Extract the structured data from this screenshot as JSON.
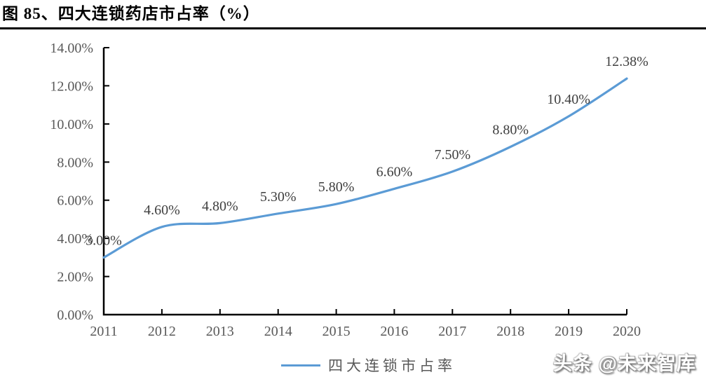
{
  "figure": {
    "title": "图 85、四大连锁药店市占率（%）"
  },
  "watermark": "头条 @未来智库",
  "chart_data": {
    "type": "line",
    "title": "四大连锁药店市占率（%）",
    "categories": [
      "2011",
      "2012",
      "2013",
      "2014",
      "2015",
      "2016",
      "2017",
      "2018",
      "2019",
      "2020"
    ],
    "series": [
      {
        "name": "四大连锁市占率",
        "values": [
          3.0,
          4.6,
          4.8,
          5.3,
          5.8,
          6.6,
          7.5,
          8.8,
          10.4,
          12.38
        ],
        "data_labels": [
          "3.00%",
          "4.60%",
          "4.80%",
          "5.30%",
          "5.80%",
          "6.60%",
          "7.50%",
          "8.80%",
          "10.40%",
          "12.38%"
        ]
      }
    ],
    "y_axis": {
      "min": 0,
      "max": 14,
      "tick_labels": [
        "0.00%",
        "2.00%",
        "4.00%",
        "6.00%",
        "8.00%",
        "10.00%",
        "12.00%",
        "14.00%"
      ]
    },
    "xlabel": "",
    "ylabel": "",
    "grid": false,
    "smoothed": true,
    "legend": {
      "label": "四大连锁市占率",
      "position": "bottom"
    },
    "colors": {
      "line": "#5B9BD5",
      "axis": "#000000",
      "axis_label": "#595959",
      "data_label": "#3F3F3F"
    }
  }
}
